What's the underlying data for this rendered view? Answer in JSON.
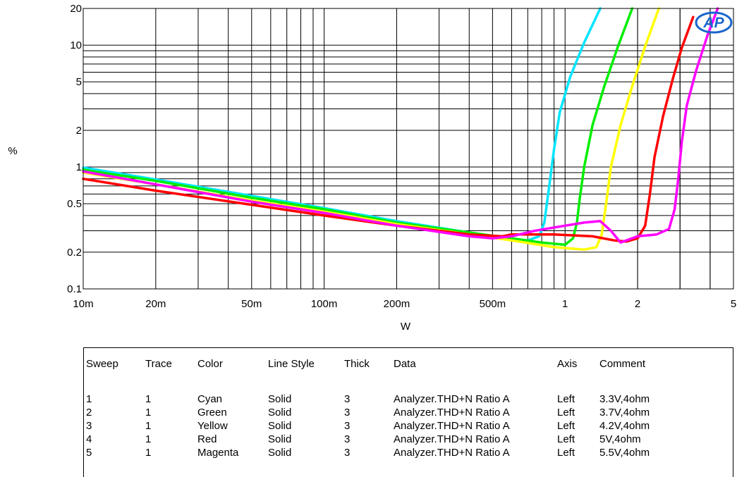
{
  "chart_data": {
    "type": "line",
    "title": "",
    "xlabel": "W",
    "ylabel": "%",
    "xscale": "log",
    "yscale": "log",
    "xlim": [
      0.01,
      5
    ],
    "ylim": [
      0.1,
      20
    ],
    "x_ticks": [
      {
        "value": 0.01,
        "label": "10m"
      },
      {
        "value": 0.02,
        "label": "20m"
      },
      {
        "value": 0.05,
        "label": "50m"
      },
      {
        "value": 0.1,
        "label": "100m"
      },
      {
        "value": 0.2,
        "label": "200m"
      },
      {
        "value": 0.5,
        "label": "500m"
      },
      {
        "value": 1,
        "label": "1"
      },
      {
        "value": 2,
        "label": "2"
      },
      {
        "value": 5,
        "label": "5"
      }
    ],
    "y_ticks": [
      {
        "value": 0.1,
        "label": "0.1"
      },
      {
        "value": 0.2,
        "label": "0.2"
      },
      {
        "value": 0.5,
        "label": "0.5"
      },
      {
        "value": 1,
        "label": "1"
      },
      {
        "value": 2,
        "label": "2"
      },
      {
        "value": 5,
        "label": "5"
      },
      {
        "value": 10,
        "label": "10"
      },
      {
        "value": 20,
        "label": "20"
      }
    ],
    "grid": true,
    "series": [
      {
        "color": "#00e5ff",
        "x": [
          0.01,
          0.02,
          0.05,
          0.1,
          0.2,
          0.4,
          0.55,
          0.7,
          0.78,
          0.82,
          0.86,
          0.9,
          0.95,
          1.05,
          1.2,
          1.4
        ],
        "y": [
          0.99,
          0.79,
          0.58,
          0.46,
          0.36,
          0.29,
          0.26,
          0.25,
          0.27,
          0.35,
          0.7,
          1.4,
          2.8,
          5.5,
          10.5,
          20
        ]
      },
      {
        "color": "#00ee00",
        "x": [
          0.01,
          0.02,
          0.05,
          0.1,
          0.2,
          0.4,
          0.6,
          0.8,
          1.0,
          1.08,
          1.12,
          1.15,
          1.2,
          1.3,
          1.45,
          1.65,
          1.9
        ],
        "y": [
          0.95,
          0.77,
          0.56,
          0.45,
          0.35,
          0.29,
          0.26,
          0.24,
          0.23,
          0.26,
          0.35,
          0.55,
          1.0,
          2.2,
          4.5,
          9.5,
          20
        ]
      },
      {
        "color": "#ffff00",
        "x": [
          0.01,
          0.02,
          0.05,
          0.1,
          0.2,
          0.4,
          0.6,
          0.9,
          1.2,
          1.35,
          1.42,
          1.48,
          1.55,
          1.7,
          1.9,
          2.15,
          2.45
        ],
        "y": [
          0.9,
          0.72,
          0.53,
          0.43,
          0.34,
          0.28,
          0.25,
          0.22,
          0.21,
          0.22,
          0.28,
          0.5,
          1.0,
          2.2,
          4.6,
          9.8,
          20
        ]
      },
      {
        "color": "#ff0000",
        "x": [
          0.01,
          0.02,
          0.05,
          0.1,
          0.2,
          0.4,
          0.55,
          0.6,
          0.9,
          1.3,
          1.6,
          1.8,
          2.0,
          2.15,
          2.25,
          2.35,
          2.55,
          2.8,
          3.05,
          3.4
        ],
        "y": [
          0.8,
          0.64,
          0.49,
          0.4,
          0.33,
          0.28,
          0.27,
          0.28,
          0.28,
          0.27,
          0.25,
          0.245,
          0.26,
          0.33,
          0.6,
          1.2,
          2.6,
          5.3,
          9.5,
          17
        ]
      },
      {
        "color": "#ff00ff",
        "x": [
          0.01,
          0.02,
          0.05,
          0.1,
          0.2,
          0.4,
          0.5,
          0.6,
          0.75,
          1.0,
          1.2,
          1.4,
          1.55,
          1.7,
          2.0,
          2.4,
          2.7,
          2.85,
          2.95,
          3.05,
          3.2,
          3.5,
          3.9,
          4.3
        ],
        "y": [
          0.92,
          0.72,
          0.52,
          0.42,
          0.33,
          0.27,
          0.26,
          0.27,
          0.3,
          0.33,
          0.35,
          0.36,
          0.3,
          0.24,
          0.27,
          0.28,
          0.31,
          0.45,
          0.8,
          1.6,
          3.2,
          6.2,
          12,
          21
        ]
      }
    ]
  },
  "legend_table": {
    "headers": [
      "Sweep",
      "Trace",
      "Color",
      "Line Style",
      "Thick",
      "Data",
      "Axis",
      "Comment"
    ],
    "rows": [
      [
        "1",
        "1",
        "Cyan",
        "Solid",
        "3",
        "Analyzer.THD+N Ratio A",
        "Left",
        "3.3V,4ohm"
      ],
      [
        "2",
        "1",
        "Green",
        "Solid",
        "3",
        "Analyzer.THD+N Ratio A",
        "Left",
        "3.7V,4ohm"
      ],
      [
        "3",
        "1",
        "Yellow",
        "Solid",
        "3",
        "Analyzer.THD+N Ratio A",
        "Left",
        "4.2V,4ohm"
      ],
      [
        "4",
        "1",
        "Red",
        "Solid",
        "3",
        "Analyzer.THD+N Ratio A",
        "Left",
        "5V,4ohm"
      ],
      [
        "5",
        "1",
        "Magenta",
        "Solid",
        "3",
        "Analyzer.THD+N Ratio A",
        "Left",
        "5.5V,4ohm"
      ]
    ]
  },
  "logo": {
    "text": "AP",
    "color": "#1a66cc"
  }
}
